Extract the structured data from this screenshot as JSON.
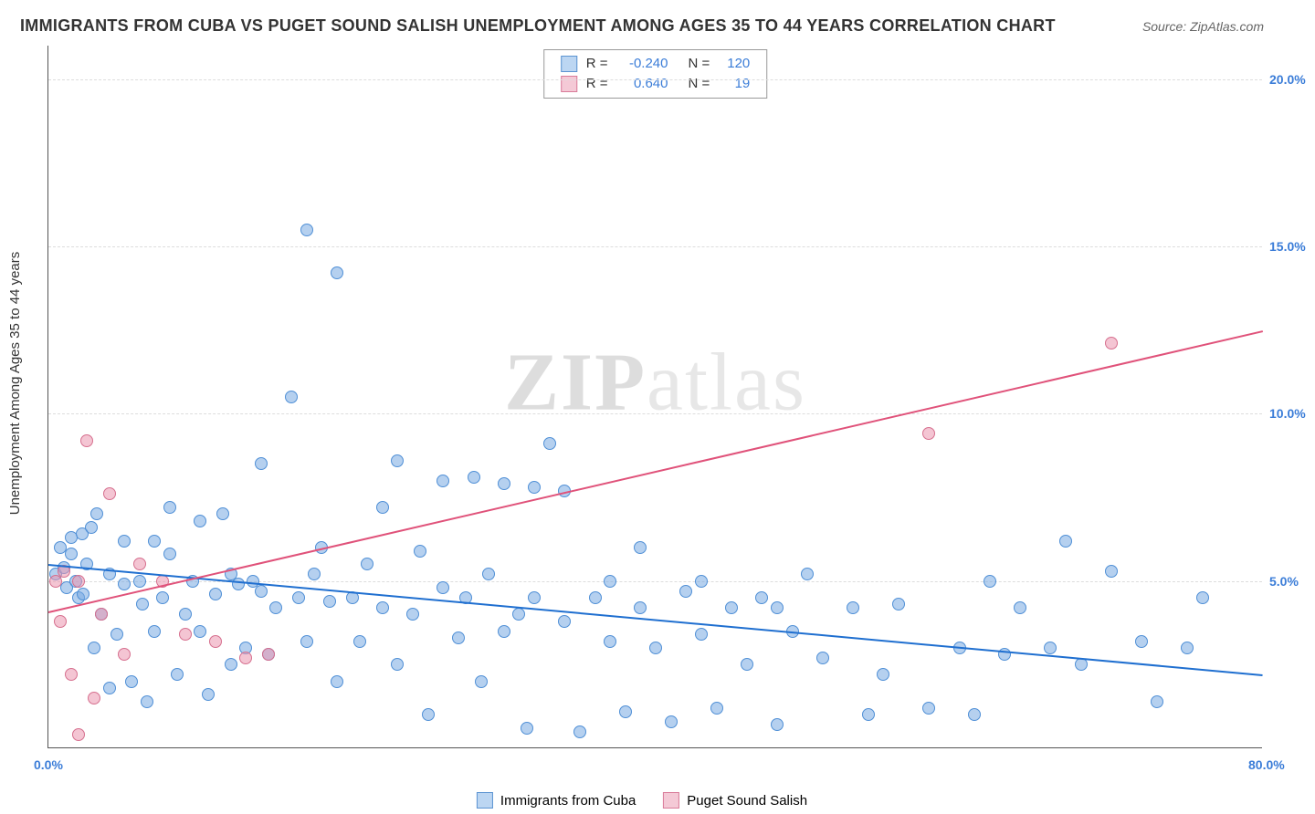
{
  "title": "IMMIGRANTS FROM CUBA VS PUGET SOUND SALISH UNEMPLOYMENT AMONG AGES 35 TO 44 YEARS CORRELATION CHART",
  "source": "Source: ZipAtlas.com",
  "y_axis_label": "Unemployment Among Ages 35 to 44 years",
  "watermark": {
    "left": "ZIP",
    "right": "atlas"
  },
  "chart": {
    "type": "scatter",
    "xlim": [
      0,
      80
    ],
    "ylim": [
      0,
      21
    ],
    "x_ticks": [
      {
        "v": 0,
        "l": "0.0%"
      },
      {
        "v": 80,
        "l": "80.0%"
      }
    ],
    "y_ticks": [
      {
        "v": 5,
        "l": "5.0%"
      },
      {
        "v": 10,
        "l": "10.0%"
      },
      {
        "v": 15,
        "l": "15.0%"
      },
      {
        "v": 20,
        "l": "20.0%"
      }
    ],
    "tick_color": "#3b7dd8",
    "grid_color": "#dddddd",
    "background_color": "#ffffff",
    "marker_radius": 7,
    "series": [
      {
        "name": "Immigrants from Cuba",
        "fill": "rgba(120,170,225,0.55)",
        "stroke": "#4f8fd6",
        "swatch_fill": "#bcd6f2",
        "swatch_border": "#5b93d1",
        "R": "-0.240",
        "N": "120",
        "trend": {
          "x1": 0,
          "y1": 5.5,
          "x2": 80,
          "y2": 2.2,
          "color": "#1f6fd0",
          "width": 2
        },
        "points": [
          [
            0.5,
            5.2
          ],
          [
            0.8,
            6.0
          ],
          [
            1.0,
            5.4
          ],
          [
            1.2,
            4.8
          ],
          [
            1.5,
            6.3
          ],
          [
            1.5,
            5.8
          ],
          [
            1.8,
            5.0
          ],
          [
            2.0,
            4.5
          ],
          [
            2.2,
            6.4
          ],
          [
            2.3,
            4.6
          ],
          [
            2.5,
            5.5
          ],
          [
            2.8,
            6.6
          ],
          [
            3.0,
            3.0
          ],
          [
            3.2,
            7.0
          ],
          [
            3.5,
            4.0
          ],
          [
            4.0,
            1.8
          ],
          [
            4.0,
            5.2
          ],
          [
            4.5,
            3.4
          ],
          [
            5.0,
            4.9
          ],
          [
            5.0,
            6.2
          ],
          [
            5.5,
            2.0
          ],
          [
            6.0,
            5.0
          ],
          [
            6.2,
            4.3
          ],
          [
            6.5,
            1.4
          ],
          [
            7.0,
            6.2
          ],
          [
            7.0,
            3.5
          ],
          [
            7.5,
            4.5
          ],
          [
            8.0,
            5.8
          ],
          [
            8.0,
            7.2
          ],
          [
            8.5,
            2.2
          ],
          [
            9.0,
            4.0
          ],
          [
            9.5,
            5.0
          ],
          [
            10.0,
            3.5
          ],
          [
            10.0,
            6.8
          ],
          [
            10.5,
            1.6
          ],
          [
            11.0,
            4.6
          ],
          [
            11.5,
            7.0
          ],
          [
            12.0,
            2.5
          ],
          [
            12.0,
            5.2
          ],
          [
            12.5,
            4.9
          ],
          [
            13.0,
            3.0
          ],
          [
            13.5,
            5.0
          ],
          [
            14.0,
            4.7
          ],
          [
            14.0,
            8.5
          ],
          [
            14.5,
            2.8
          ],
          [
            15.0,
            4.2
          ],
          [
            16.0,
            10.5
          ],
          [
            16.5,
            4.5
          ],
          [
            17.0,
            3.2
          ],
          [
            17.0,
            15.5
          ],
          [
            17.5,
            5.2
          ],
          [
            18.0,
            6.0
          ],
          [
            18.5,
            4.4
          ],
          [
            19.0,
            2.0
          ],
          [
            19.0,
            14.2
          ],
          [
            20.0,
            4.5
          ],
          [
            20.5,
            3.2
          ],
          [
            21.0,
            5.5
          ],
          [
            22.0,
            4.2
          ],
          [
            22.0,
            7.2
          ],
          [
            23.0,
            2.5
          ],
          [
            23.0,
            8.6
          ],
          [
            24.0,
            4.0
          ],
          [
            24.5,
            5.9
          ],
          [
            25.0,
            1.0
          ],
          [
            26.0,
            4.8
          ],
          [
            26.0,
            8.0
          ],
          [
            27.0,
            3.3
          ],
          [
            27.5,
            4.5
          ],
          [
            28.0,
            8.1
          ],
          [
            28.5,
            2.0
          ],
          [
            29.0,
            5.2
          ],
          [
            30.0,
            3.5
          ],
          [
            30.0,
            7.9
          ],
          [
            31.0,
            4.0
          ],
          [
            31.5,
            0.6
          ],
          [
            32.0,
            4.5
          ],
          [
            32.0,
            7.8
          ],
          [
            33.0,
            9.1
          ],
          [
            34.0,
            3.8
          ],
          [
            34.0,
            7.7
          ],
          [
            35.0,
            0.5
          ],
          [
            36.0,
            4.5
          ],
          [
            37.0,
            3.2
          ],
          [
            37.0,
            5.0
          ],
          [
            38.0,
            1.1
          ],
          [
            39.0,
            4.2
          ],
          [
            39.0,
            6.0
          ],
          [
            40.0,
            3.0
          ],
          [
            41.0,
            0.8
          ],
          [
            42.0,
            4.7
          ],
          [
            43.0,
            3.4
          ],
          [
            43.0,
            5.0
          ],
          [
            44.0,
            1.2
          ],
          [
            45.0,
            4.2
          ],
          [
            46.0,
            2.5
          ],
          [
            47.0,
            4.5
          ],
          [
            48.0,
            0.7
          ],
          [
            48.0,
            4.2
          ],
          [
            49.0,
            3.5
          ],
          [
            50.0,
            5.2
          ],
          [
            51.0,
            2.7
          ],
          [
            53.0,
            4.2
          ],
          [
            54.0,
            1.0
          ],
          [
            55.0,
            2.2
          ],
          [
            56.0,
            4.3
          ],
          [
            58.0,
            1.2
          ],
          [
            60.0,
            3.0
          ],
          [
            61.0,
            1.0
          ],
          [
            62.0,
            5.0
          ],
          [
            63.0,
            2.8
          ],
          [
            64.0,
            4.2
          ],
          [
            66.0,
            3.0
          ],
          [
            67.0,
            6.2
          ],
          [
            68.0,
            2.5
          ],
          [
            70.0,
            5.3
          ],
          [
            72.0,
            3.2
          ],
          [
            73.0,
            1.4
          ],
          [
            75.0,
            3.0
          ],
          [
            76.0,
            4.5
          ]
        ]
      },
      {
        "name": "Puget Sound Salish",
        "fill": "rgba(235,150,175,0.55)",
        "stroke": "#d66f8e",
        "swatch_fill": "#f4c9d6",
        "swatch_border": "#d97b99",
        "R": "0.640",
        "N": "19",
        "trend": {
          "x1": 0,
          "y1": 4.1,
          "x2": 80,
          "y2": 12.5,
          "color": "#e0527a",
          "width": 2
        },
        "points": [
          [
            0.5,
            5.0
          ],
          [
            0.8,
            3.8
          ],
          [
            1.0,
            5.3
          ],
          [
            1.5,
            2.2
          ],
          [
            2.0,
            5.0
          ],
          [
            2.5,
            9.2
          ],
          [
            3.0,
            1.5
          ],
          [
            3.5,
            4.0
          ],
          [
            4.0,
            7.6
          ],
          [
            5.0,
            2.8
          ],
          [
            6.0,
            5.5
          ],
          [
            7.5,
            5.0
          ],
          [
            9.0,
            3.4
          ],
          [
            11.0,
            3.2
          ],
          [
            13.0,
            2.7
          ],
          [
            14.5,
            2.8
          ],
          [
            58.0,
            9.4
          ],
          [
            70.0,
            12.1
          ],
          [
            2.0,
            0.4
          ]
        ]
      }
    ]
  },
  "stats_box": {
    "label_color": "#333333",
    "value_color": "#3b7dd8"
  },
  "legend": {
    "items": [
      {
        "label": "Immigrants from Cuba",
        "swatch_fill": "#bcd6f2",
        "swatch_border": "#5b93d1"
      },
      {
        "label": "Puget Sound Salish",
        "swatch_fill": "#f4c9d6",
        "swatch_border": "#d97b99"
      }
    ]
  }
}
